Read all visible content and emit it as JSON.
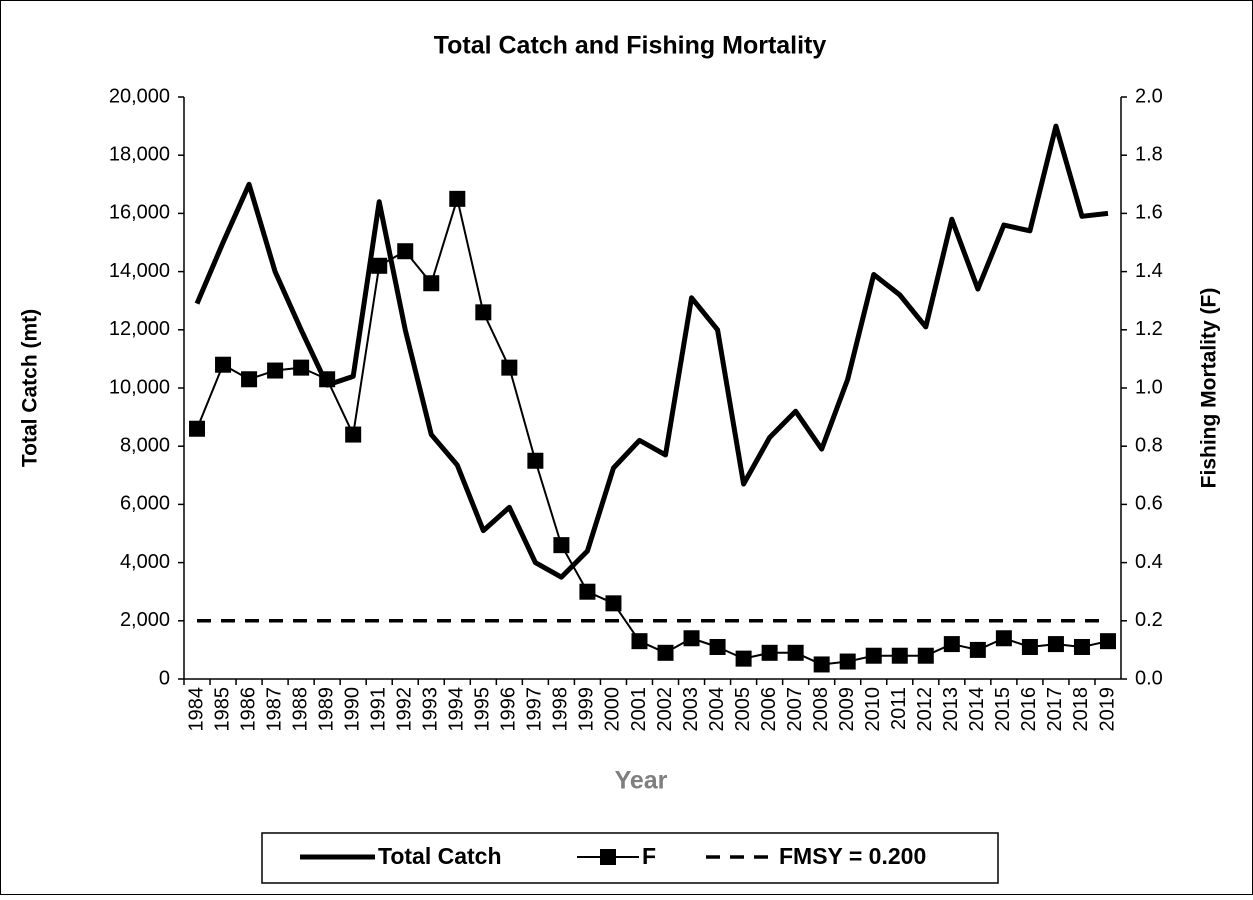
{
  "chart_data": {
    "type": "line",
    "title": "Total Catch and Fishing Mortality",
    "x_label": "Year",
    "y_label": "Total Catch (mt)",
    "y2_label": "Fishing Mortality (F)",
    "categories": [
      "1984",
      "1985",
      "1986",
      "1987",
      "1988",
      "1989",
      "1990",
      "1991",
      "1992",
      "1993",
      "1994",
      "1995",
      "1996",
      "1997",
      "1998",
      "1999",
      "2000",
      "2001",
      "2002",
      "2003",
      "2004",
      "2005",
      "2006",
      "2007",
      "2008",
      "2009",
      "2010",
      "2011",
      "2012",
      "2013",
      "2014",
      "2015",
      "2016",
      "2017",
      "2018",
      "2019"
    ],
    "series": [
      {
        "name": "Total Catch",
        "color": "#000000",
        "style": "solid",
        "marker": "none",
        "values": [
          12900,
          15000,
          17000,
          14000,
          12000,
          10100,
          10400,
          16400,
          12000,
          8400,
          7350,
          5100,
          5900,
          4000,
          3500,
          4400,
          7250,
          8200,
          7700,
          13100,
          12000,
          6700,
          8300,
          9200,
          7900,
          10300,
          13900,
          13200,
          12100,
          15800,
          13400,
          15600,
          15400,
          19000,
          15900,
          16000
        ]
      },
      {
        "name": "F",
        "color": "#000000",
        "style": "solid",
        "marker": "square",
        "axis": "y2",
        "values": [
          0.86,
          1.08,
          1.03,
          1.06,
          1.07,
          1.03,
          0.84,
          1.42,
          1.47,
          1.36,
          1.65,
          1.26,
          1.07,
          0.75,
          0.46,
          0.3,
          0.26,
          0.13,
          0.09,
          0.14,
          0.11,
          0.07,
          0.09,
          0.09,
          0.05,
          0.06,
          0.08,
          0.08,
          0.08,
          0.12,
          0.1,
          0.14,
          0.11,
          0.12,
          0.11,
          0.13
        ]
      },
      {
        "name": "FMSY = 0.200",
        "color": "#000000",
        "style": "dashed",
        "marker": "none",
        "axis": "y2",
        "values": [
          0.2,
          0.2,
          0.2,
          0.2,
          0.2,
          0.2,
          0.2,
          0.2,
          0.2,
          0.2,
          0.2,
          0.2,
          0.2,
          0.2,
          0.2,
          0.2,
          0.2,
          0.2,
          0.2,
          0.2,
          0.2,
          0.2,
          0.2,
          0.2,
          0.2,
          0.2,
          0.2,
          0.2,
          0.2,
          0.2,
          0.2,
          0.2,
          0.2,
          0.2,
          0.2,
          0.2
        ]
      }
    ],
    "ylim": [
      0,
      20000
    ],
    "yticks": [
      0,
      {
        "value": 2000,
        "label": "2,000"
      },
      {
        "value": 4000,
        "label": "4,000"
      },
      {
        "value": 6000,
        "label": "6,000"
      },
      {
        "value": 8000,
        "label": "8,000"
      },
      {
        "value": 10000,
        "label": "10,000"
      },
      {
        "value": 12000,
        "label": "12,000"
      },
      {
        "value": 14000,
        "label": "14,000"
      },
      {
        "value": 16000,
        "label": "16,000"
      },
      {
        "value": 18000,
        "label": "18,000"
      },
      {
        "value": 20000,
        "label": "20,000"
      }
    ],
    "y2lim": [
      0,
      2
    ],
    "y2ticks": [
      {
        "value": 0,
        "label": "0.0"
      },
      {
        "value": 0.2,
        "label": "0.2"
      },
      {
        "value": 0.4,
        "label": "0.4"
      },
      {
        "value": 0.6,
        "label": "0.6"
      },
      {
        "value": 0.8,
        "label": "0.8"
      },
      {
        "value": 1,
        "label": "1.0"
      },
      {
        "value": 1.2,
        "label": "1.2"
      },
      {
        "value": 1.4,
        "label": "1.4"
      },
      {
        "value": 1.6,
        "label": "1.6"
      },
      {
        "value": 1.8,
        "label": "1.8"
      },
      {
        "value": 2,
        "label": "2.0"
      }
    ],
    "grid": false,
    "legend": "bottom"
  }
}
